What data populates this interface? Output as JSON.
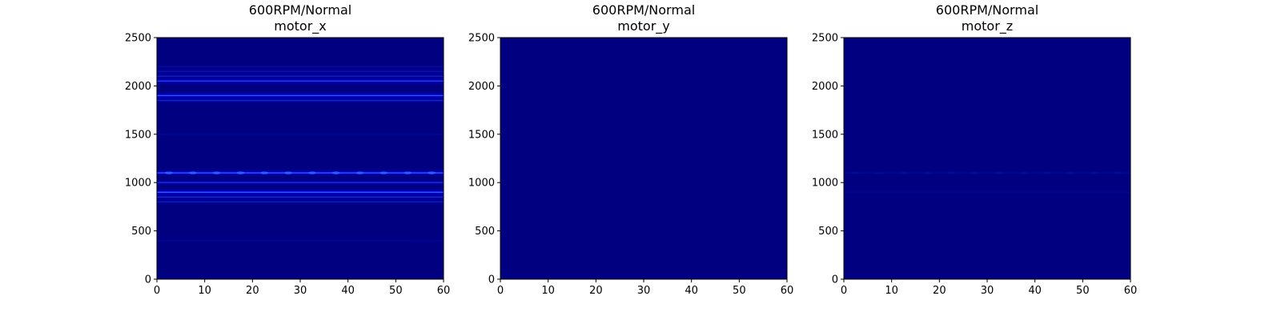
{
  "figure": {
    "background": "#ffffff",
    "colormap": "jet",
    "colors": {
      "base": "#000080",
      "mid": "#0000ff",
      "highlight": "#3c6bff"
    }
  },
  "chart_data": [
    {
      "type": "heatmap",
      "title": "600RPM/Normal",
      "subtitle": "motor_x",
      "xlim": [
        0,
        60
      ],
      "ylim": [
        0,
        2500
      ],
      "xticks": [
        0,
        10,
        20,
        30,
        40,
        50,
        60
      ],
      "yticks": [
        0,
        500,
        1000,
        1500,
        2000,
        2500
      ],
      "xlabel": "",
      "ylabel": "",
      "grid": false,
      "bands": [
        {
          "y": 400,
          "intensity": 0.08
        },
        {
          "y": 800,
          "intensity": 0.25
        },
        {
          "y": 850,
          "intensity": 0.4
        },
        {
          "y": 900,
          "intensity": 0.85
        },
        {
          "y": 1000,
          "intensity": 0.45
        },
        {
          "y": 1100,
          "intensity": 0.75,
          "pulsing": true
        },
        {
          "y": 1500,
          "intensity": 0.06
        },
        {
          "y": 1850,
          "intensity": 0.35
        },
        {
          "y": 1900,
          "intensity": 0.8
        },
        {
          "y": 2050,
          "intensity": 0.6
        },
        {
          "y": 2100,
          "intensity": 0.3
        },
        {
          "y": 2150,
          "intensity": 0.2
        },
        {
          "y": 2200,
          "intensity": 0.1
        }
      ]
    },
    {
      "type": "heatmap",
      "title": "600RPM/Normal",
      "subtitle": "motor_y",
      "xlim": [
        0,
        60
      ],
      "ylim": [
        0,
        2500
      ],
      "xticks": [
        0,
        10,
        20,
        30,
        40,
        50,
        60
      ],
      "yticks": [
        0,
        500,
        1000,
        1500,
        2000,
        2500
      ],
      "xlabel": "",
      "ylabel": "",
      "grid": false,
      "bands": []
    },
    {
      "type": "heatmap",
      "title": "600RPM/Normal",
      "subtitle": "motor_z",
      "xlim": [
        0,
        60
      ],
      "ylim": [
        0,
        2500
      ],
      "xticks": [
        0,
        10,
        20,
        30,
        40,
        50,
        60
      ],
      "yticks": [
        0,
        500,
        1000,
        1500,
        2000,
        2500
      ],
      "xlabel": "",
      "ylabel": "",
      "grid": false,
      "bands": [
        {
          "y": 900,
          "intensity": 0.05
        },
        {
          "y": 1100,
          "intensity": 0.07,
          "pulsing": true
        }
      ]
    }
  ]
}
